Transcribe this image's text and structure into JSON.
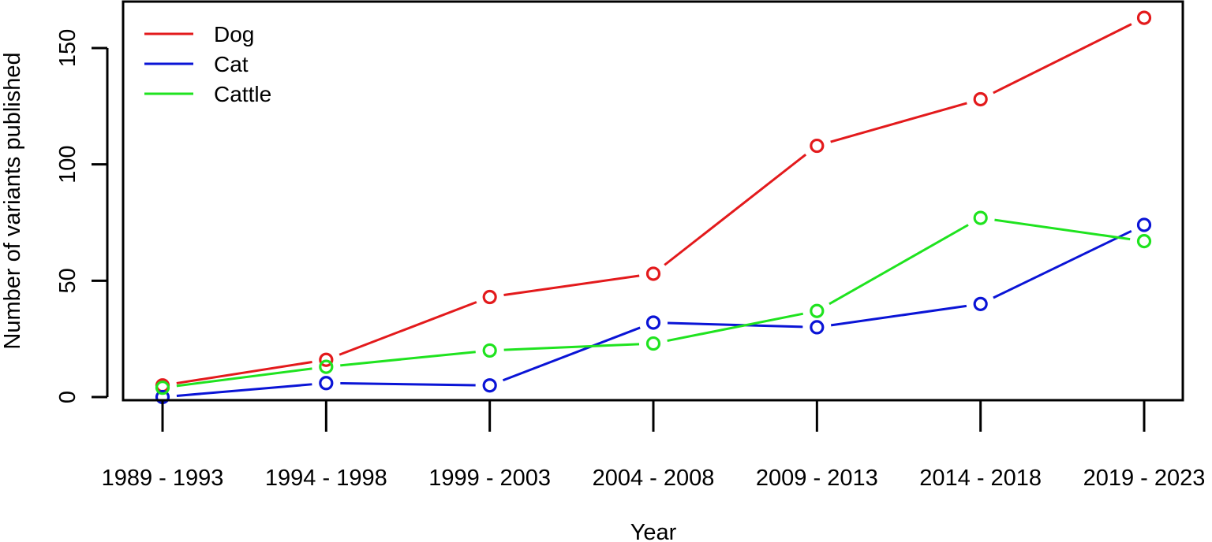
{
  "chart_data": {
    "type": "line",
    "title": "",
    "xlabel": "Year",
    "ylabel": "Number of variants published",
    "categories": [
      "1989 - 1993",
      "1994 - 1998",
      "1999 - 2003",
      "2004 - 2008",
      "2009 - 2013",
      "2014 - 2018",
      "2019 - 2023"
    ],
    "y_ticks": [
      0,
      50,
      100,
      150
    ],
    "ylim": [
      -2,
      168
    ],
    "grid": false,
    "legend_position": "top-left",
    "markers": "open-circle",
    "series": [
      {
        "name": "Dog",
        "color": "#e31a1c",
        "values": [
          5,
          16,
          43,
          53,
          108,
          128,
          163
        ]
      },
      {
        "name": "Cat",
        "color": "#0a14d6",
        "values": [
          0,
          6,
          5,
          32,
          30,
          40,
          74
        ]
      },
      {
        "name": "Cattle",
        "color": "#1fe31f",
        "values": [
          4,
          13,
          20,
          23,
          37,
          77,
          67
        ]
      }
    ]
  }
}
